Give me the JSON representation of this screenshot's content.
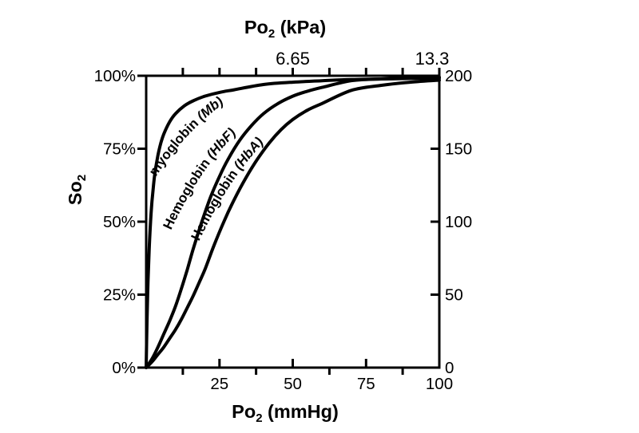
{
  "chart_data": {
    "type": "line",
    "title_top": {
      "pre": "Po",
      "sub": "2",
      "post": " (kPa)"
    },
    "xlabel_bottom": {
      "pre": "Po",
      "sub": "2",
      "post": " (mmHg)"
    },
    "ylabel_left": {
      "pre": "So",
      "sub": "2"
    },
    "axes": {
      "bottom": {
        "unit": "mmHg",
        "range": [
          0,
          100
        ],
        "major_ticks": [
          25,
          50,
          75,
          100
        ],
        "major_labels": [
          "25",
          "50",
          "75",
          "100"
        ],
        "minor_ticks": [
          12.5,
          37.5,
          62.5,
          87.5
        ],
        "grid": false
      },
      "top": {
        "unit": "kPa",
        "ticks_mmHg": [
          12.5,
          25,
          37.5,
          50,
          62.5,
          75,
          87.5,
          100
        ],
        "labels": [
          {
            "text": "6.65",
            "at_mmHg": 50
          },
          {
            "text": "13.3",
            "at_mmHg": 100
          }
        ]
      },
      "left": {
        "unit": "%",
        "range": [
          0,
          100
        ],
        "ticks": [
          0,
          25,
          50,
          75,
          100
        ],
        "labels": [
          "0%",
          "25%",
          "50%",
          "75%",
          "100%"
        ]
      },
      "right": {
        "range": [
          0,
          200
        ],
        "ticks": [
          0,
          50,
          100,
          150,
          200
        ],
        "labels": [
          "0",
          "50",
          "100",
          "150",
          "200"
        ]
      }
    },
    "series": [
      {
        "name": "myoglobin",
        "abbr": " (Mb)",
        "x": [
          0,
          0.3,
          0.6,
          1,
          1.5,
          2,
          2.5,
          3,
          4,
          5,
          6,
          8,
          10,
          13,
          16,
          20,
          25,
          30,
          40,
          50,
          60,
          70,
          85,
          100
        ],
        "y": [
          0,
          16.7,
          28.6,
          40,
          50,
          57.1,
          62.5,
          66.7,
          72.7,
          76.9,
          80,
          84.2,
          87,
          89.7,
          91.4,
          93,
          94.3,
          95.2,
          97,
          97.8,
          98.3,
          98.7,
          99,
          99.2
        ]
      },
      {
        "name": "Hemoglobin",
        "abbr": " (HbF)",
        "x": [
          0,
          2,
          4,
          6,
          8,
          10,
          12,
          14,
          16,
          19,
          22,
          25,
          28,
          32,
          36,
          40,
          45,
          50,
          55,
          60,
          70,
          80,
          90,
          100
        ],
        "y": [
          0,
          3,
          7,
          11.5,
          16,
          21,
          27,
          33.5,
          40.5,
          50,
          58.5,
          65.5,
          71.5,
          78,
          83,
          87,
          90.5,
          93,
          94.7,
          96,
          98.3,
          98.9,
          99.3,
          99.5
        ]
      },
      {
        "name": "Hemoglobin",
        "abbr": " (HbA)",
        "x": [
          0,
          2,
          4,
          6,
          8,
          10,
          12,
          14,
          16,
          18,
          20,
          23,
          26.5,
          30,
          34,
          38,
          42,
          46,
          50,
          55,
          60,
          70,
          80,
          90,
          100
        ],
        "y": [
          0,
          2,
          4.5,
          7,
          10,
          13,
          16.5,
          20.5,
          24.5,
          29,
          33.5,
          41.5,
          50,
          57.5,
          65,
          71.5,
          77,
          81.5,
          85,
          88.2,
          90.5,
          95,
          96.7,
          97.8,
          98.5
        ]
      }
    ],
    "colors": {
      "line": "#000000",
      "text": "#000000",
      "background": "#ffffff"
    }
  }
}
